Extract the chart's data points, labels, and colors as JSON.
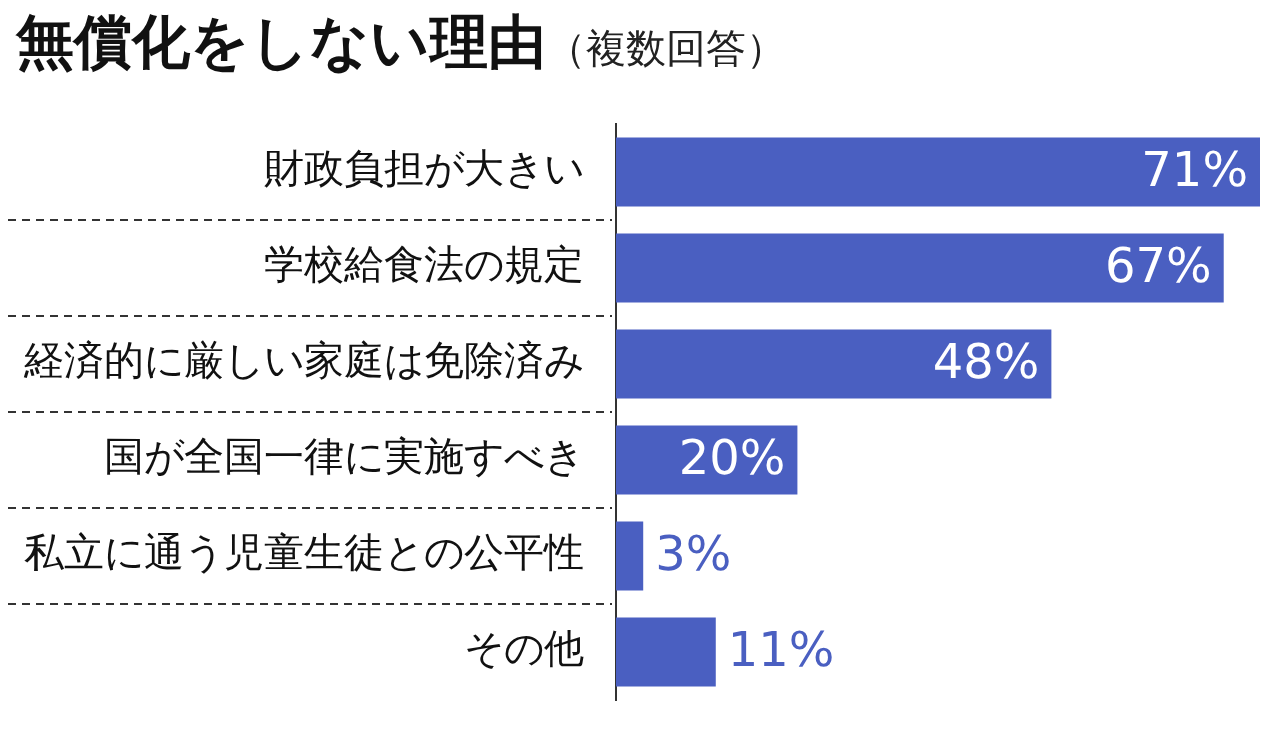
{
  "chart_data": {
    "type": "bar",
    "orientation": "horizontal",
    "title": "無償化をしない理由",
    "subtitle": "（複数回答）",
    "categories": [
      "財政負担が大きい",
      "学校給食法の規定",
      "経済的に厳しい家庭は免除済み",
      "国が全国一律に実施すべき",
      "私立に通う児童生徒との公平性",
      "その他"
    ],
    "values": [
      71,
      67,
      48,
      20,
      3,
      11
    ],
    "value_labels": [
      "71%",
      "67%",
      "48%",
      "20%",
      "3%",
      "11%"
    ],
    "color": "#4a5fc1",
    "grid": "y",
    "legend": false
  }
}
